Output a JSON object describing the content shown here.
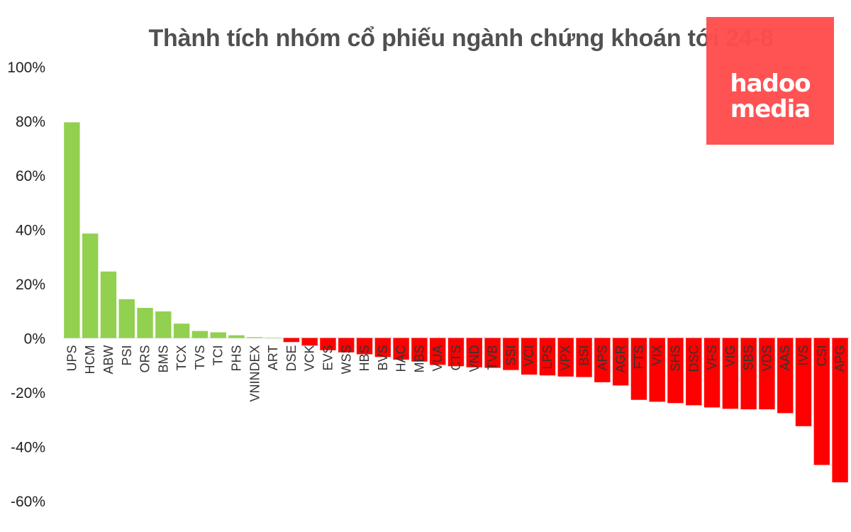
{
  "chart_data": {
    "type": "bar",
    "title": "Thành tích nhóm cổ phiếu ngành chứng khoán tới 24-8",
    "xlabel": "",
    "ylabel": "",
    "ylim": [
      -60,
      100
    ],
    "yticks": [
      100,
      80,
      60,
      40,
      20,
      0,
      -20,
      -40,
      -60
    ],
    "ytick_format": "{v}%",
    "grid": false,
    "colors": {
      "positive": "#92d050",
      "negative": "#ff0000"
    },
    "categories": [
      "UPS",
      "HCM",
      "ABW",
      "PSI",
      "ORS",
      "BMS",
      "TCX",
      "TVS",
      "TCI",
      "PHS",
      "VNINDEX",
      "ART",
      "DSE",
      "VCK",
      "EVS",
      "WSS",
      "HBS",
      "BVS",
      "HAC",
      "MBS",
      "VUA",
      "CTS",
      "VND",
      "TVB",
      "SSI",
      "VCI",
      "LPS",
      "VPX",
      "BSI",
      "APS",
      "AGR",
      "FTS",
      "VIX",
      "SHS",
      "DSC",
      "VFS",
      "VIG",
      "SBS",
      "VDS",
      "AAS",
      "IVS",
      "CSI",
      "APG"
    ],
    "values": [
      79.5,
      38.5,
      24.5,
      14.3,
      11.1,
      9.8,
      5.3,
      2.6,
      2.1,
      1.0,
      0.3,
      0.1,
      -1.5,
      -2.8,
      -4.5,
      -5.3,
      -6.0,
      -7.0,
      -8.0,
      -8.7,
      -9.9,
      -10.4,
      -10.8,
      -11.0,
      -11.8,
      -13.5,
      -13.8,
      -14.2,
      -14.4,
      -16.3,
      -17.5,
      -22.8,
      -23.5,
      -24.0,
      -24.8,
      -25.6,
      -26.1,
      -26.3,
      -26.3,
      -27.7,
      -32.5,
      -46.8,
      -53.2
    ]
  },
  "logo": {
    "line1": "hadoo",
    "line2": "media"
  }
}
